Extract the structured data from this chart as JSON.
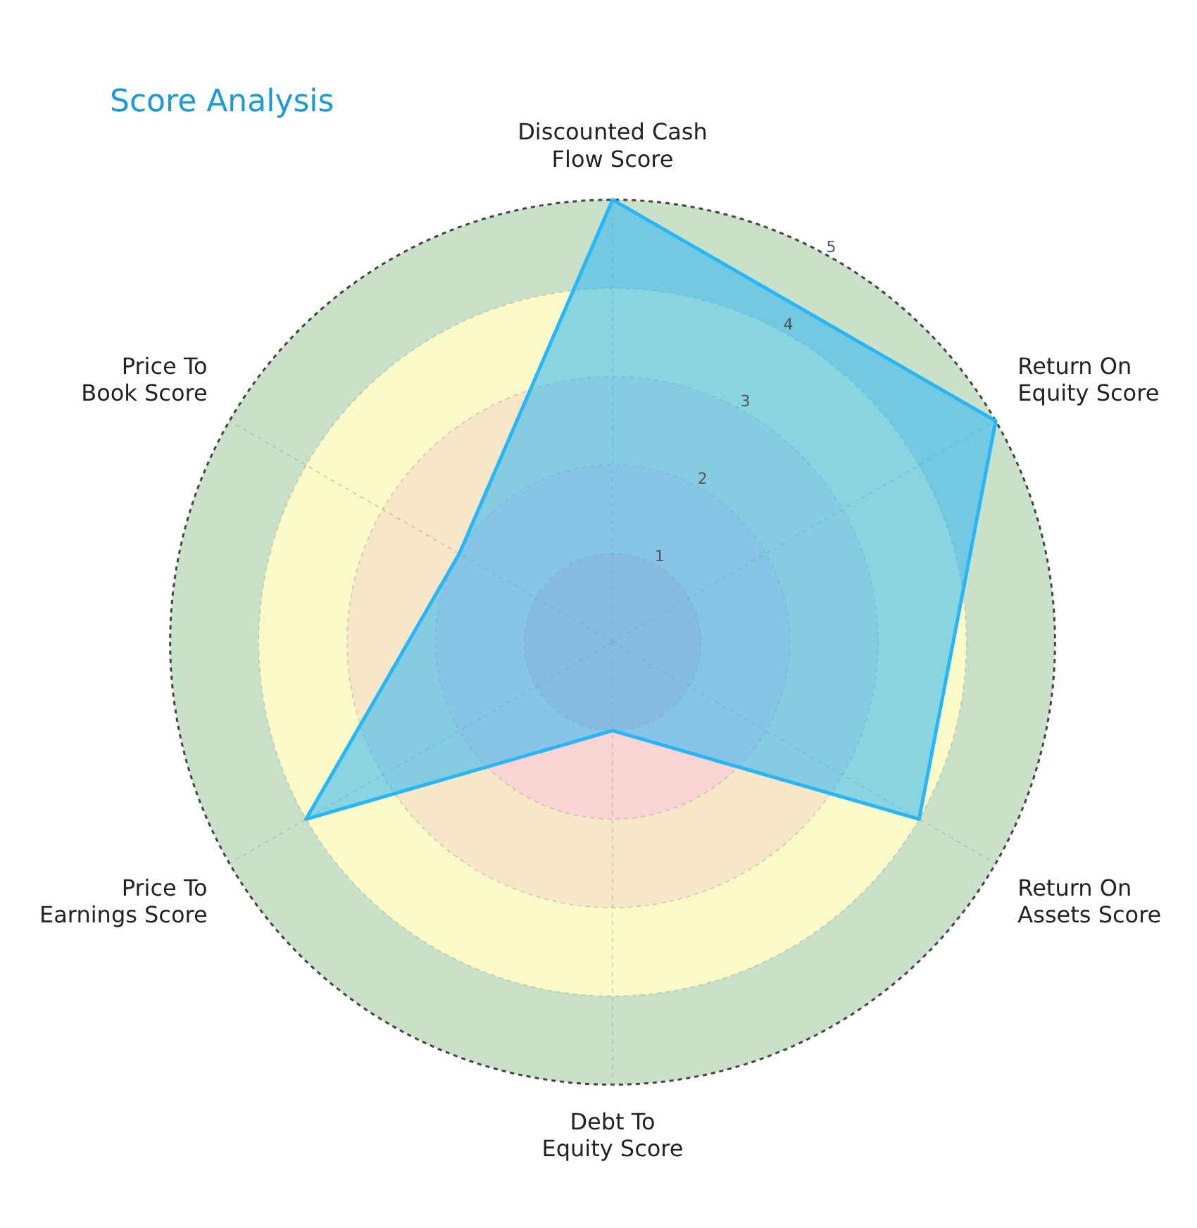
{
  "chart_data": {
    "type": "radar",
    "title": "Score Analysis",
    "categories": [
      "Discounted Cash Flow Score",
      "Return On Equity Score",
      "Return On Assets Score",
      "Debt To Equity Score",
      "Price To Earnings Score",
      "Price To Book Score"
    ],
    "series": [
      {
        "color": "#29b6f6",
        "values": [
          5,
          5,
          4,
          1,
          4,
          2
        ]
      }
    ],
    "ylim": [
      0,
      5
    ],
    "yticks": [
      1,
      2,
      3,
      4,
      5
    ],
    "grid": true,
    "legend": false,
    "marker": "none"
  }
}
